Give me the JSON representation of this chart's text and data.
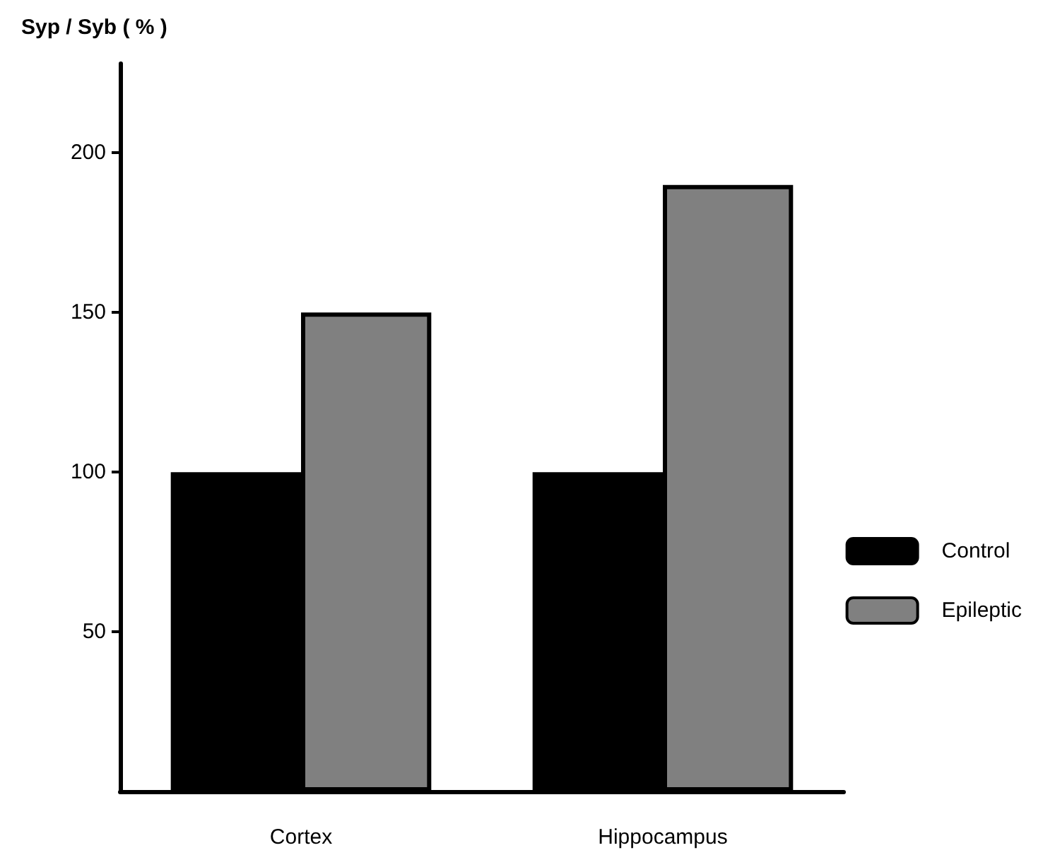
{
  "chart_data": {
    "type": "bar",
    "ylabel": "Syp / Syb ( % )",
    "categories": [
      "Cortex",
      "Hippocampus"
    ],
    "series": [
      {
        "name": "Control",
        "color": "#000000",
        "values": [
          100,
          100
        ]
      },
      {
        "name": "Epileptic",
        "color": "#808080",
        "values": [
          150,
          190
        ]
      }
    ],
    "ylim": [
      0,
      228
    ],
    "yticks": [
      50,
      100,
      150,
      200
    ],
    "grid": false,
    "legend": "right"
  }
}
